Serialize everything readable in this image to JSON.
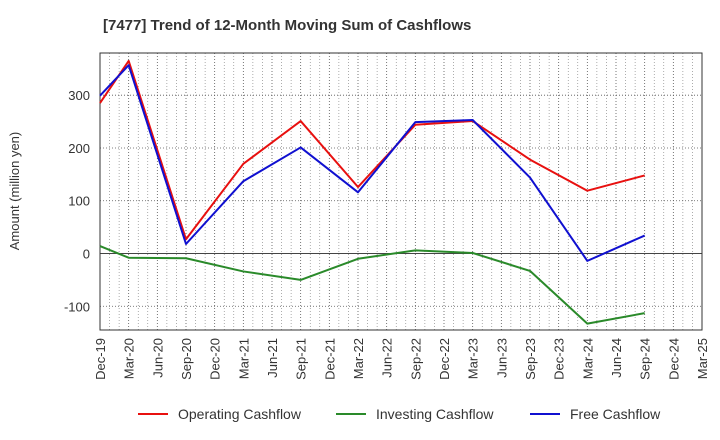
{
  "chart_data": {
    "type": "line",
    "title": "[7477]  Trend of 12-Month Moving Sum of Cashflows",
    "xlabel": "",
    "ylabel": "Amount (million yen)",
    "ylim": [
      -145,
      380
    ],
    "yticks": [
      -100,
      0,
      100,
      200,
      300
    ],
    "grid": true,
    "legend_position": "bottom",
    "categories": [
      "Dec-19",
      "Mar-20",
      "Jun-20",
      "Sep-20",
      "Dec-20",
      "Mar-21",
      "Jun-21",
      "Sep-21",
      "Dec-21",
      "Mar-22",
      "Jun-22",
      "Sep-22",
      "Dec-22",
      "Mar-23",
      "Jun-23",
      "Sep-23",
      "Dec-23",
      "Mar-24",
      "Jun-24",
      "Sep-24",
      "Dec-24",
      "Mar-25"
    ],
    "series": [
      {
        "name": "Operating Cashflow",
        "color": "#e8100f",
        "values": [
          285,
          365,
          null,
          27,
          null,
          170,
          null,
          251,
          null,
          126,
          null,
          244,
          null,
          251,
          null,
          178,
          null,
          119,
          null,
          148,
          null,
          null
        ]
      },
      {
        "name": "Investing Cashflow",
        "color": "#2a8a2a",
        "values": [
          14,
          -8,
          null,
          -9,
          null,
          -34,
          null,
          -50,
          null,
          -10,
          null,
          6,
          null,
          1,
          null,
          -33,
          null,
          -133,
          null,
          -113,
          null,
          null
        ]
      },
      {
        "name": "Free Cashflow",
        "color": "#1010d0",
        "values": [
          299,
          357,
          null,
          18,
          null,
          137,
          null,
          201,
          null,
          116,
          null,
          249,
          null,
          253,
          null,
          144,
          null,
          -14,
          null,
          34,
          null,
          null
        ]
      }
    ]
  }
}
